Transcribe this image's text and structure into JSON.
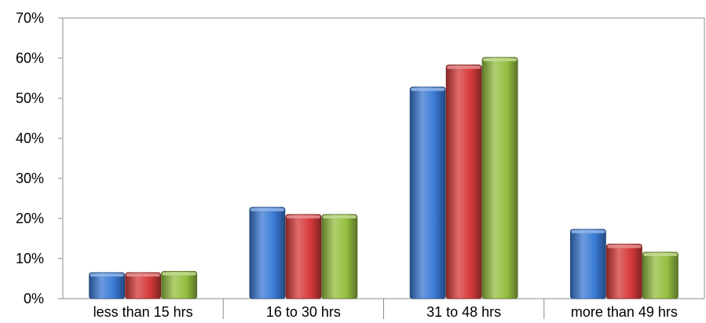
{
  "chart_data": {
    "type": "bar",
    "title": "",
    "xlabel": "",
    "ylabel": "",
    "categories": [
      "less than 15 hrs",
      "16 to 30 hrs",
      "31 to 48 hrs",
      "more than 49 hrs"
    ],
    "series": [
      {
        "values": [
          6.5,
          22.8,
          52.8,
          17.3
        ],
        "color": "#3a7ad5"
      },
      {
        "values": [
          6.5,
          21.0,
          58.3,
          13.6
        ],
        "color": "#d63a3a"
      },
      {
        "values": [
          6.8,
          21.0,
          60.2,
          11.6
        ],
        "color": "#94bf3f"
      }
    ],
    "yticks": [
      "0%",
      "10%",
      "20%",
      "30%",
      "40%",
      "50%",
      "60%",
      "70%"
    ],
    "ylim": [
      0,
      70
    ],
    "grid": false,
    "legend": "none"
  }
}
